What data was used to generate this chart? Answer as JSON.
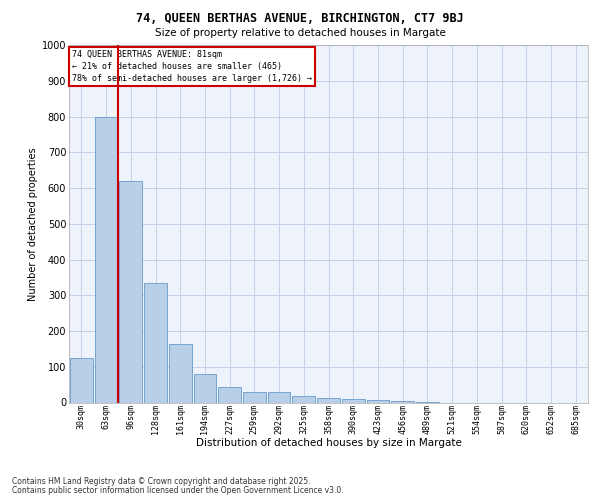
{
  "title1": "74, QUEEN BERTHAS AVENUE, BIRCHINGTON, CT7 9BJ",
  "title2": "Size of property relative to detached houses in Margate",
  "xlabel": "Distribution of detached houses by size in Margate",
  "ylabel": "Number of detached properties",
  "bar_labels": [
    "30sqm",
    "63sqm",
    "96sqm",
    "128sqm",
    "161sqm",
    "194sqm",
    "227sqm",
    "259sqm",
    "292sqm",
    "325sqm",
    "358sqm",
    "390sqm",
    "423sqm",
    "456sqm",
    "489sqm",
    "521sqm",
    "554sqm",
    "587sqm",
    "620sqm",
    "652sqm",
    "685sqm"
  ],
  "bar_values": [
    125,
    800,
    620,
    335,
    165,
    80,
    42,
    30,
    28,
    18,
    12,
    10,
    8,
    5,
    2,
    0,
    0,
    0,
    0,
    0,
    0
  ],
  "bar_color": "#b8cfe8",
  "bar_edge_color": "#6699cc",
  "red_line_x": 1.5,
  "annotation_title": "74 QUEEN BERTHAS AVENUE: 81sqm",
  "annotation_line2": "← 21% of detached houses are smaller (465)",
  "annotation_line3": "78% of semi-detached houses are larger (1,726) →",
  "annotation_box_color": "#ffffff",
  "annotation_box_edge": "#cc0000",
  "red_line_color": "#cc0000",
  "footer1": "Contains HM Land Registry data © Crown copyright and database right 2025.",
  "footer2": "Contains public sector information licensed under the Open Government Licence v3.0.",
  "ylim": [
    0,
    1000
  ],
  "yticks": [
    0,
    100,
    200,
    300,
    400,
    500,
    600,
    700,
    800,
    900,
    1000
  ],
  "bg_color": "#eef2fa",
  "grid_color": "#c5cfe8"
}
